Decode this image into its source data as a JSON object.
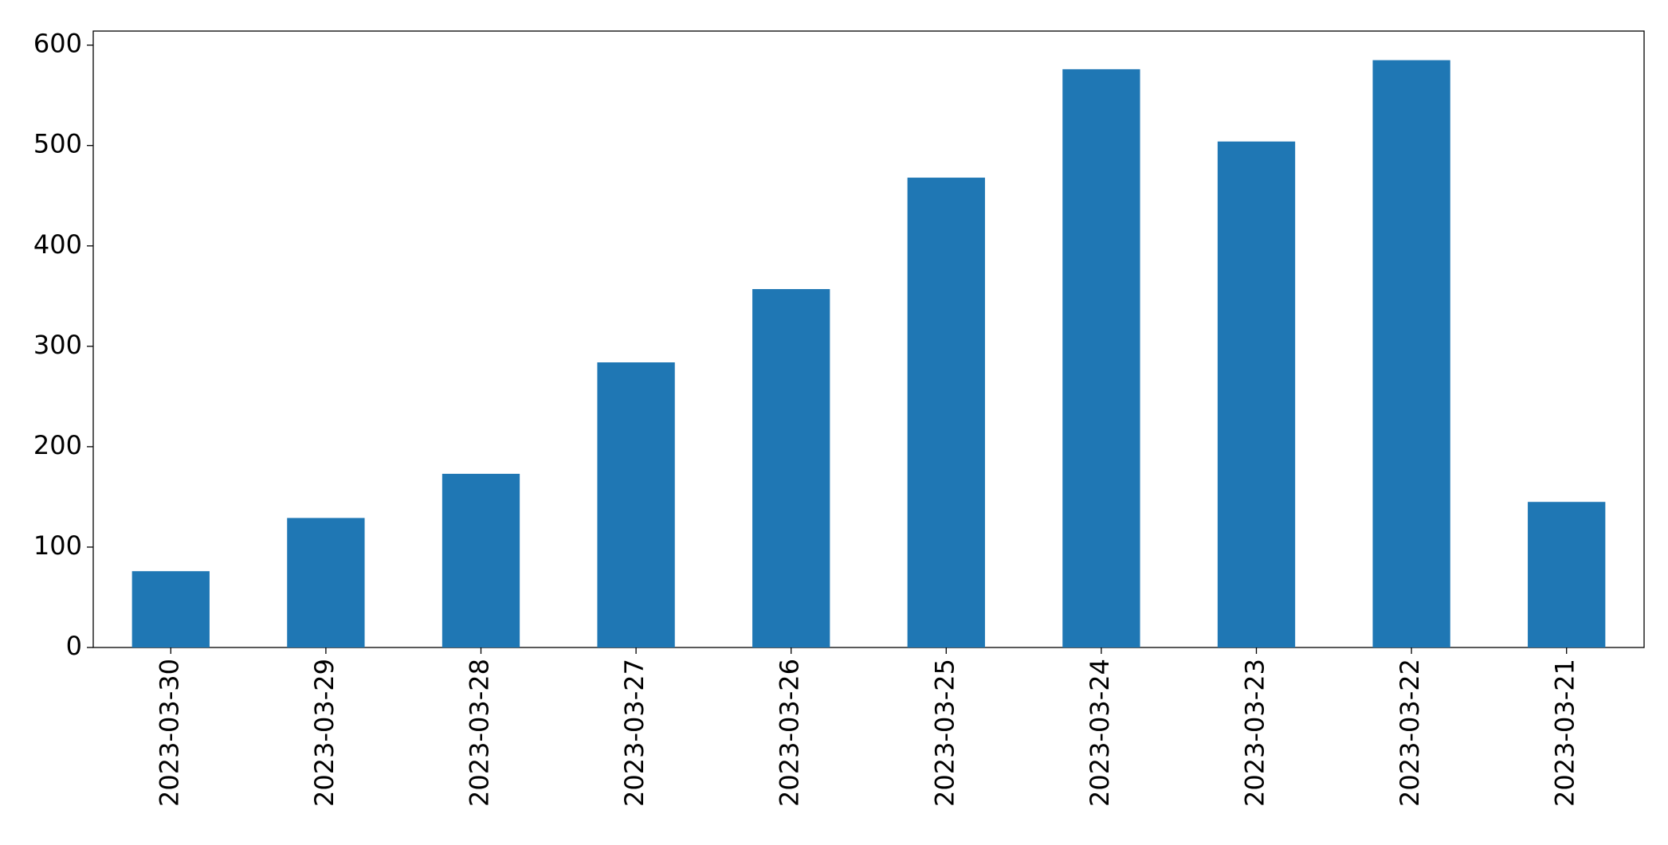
{
  "chart_data": {
    "type": "bar",
    "categories": [
      "2023-03-30",
      "2023-03-29",
      "2023-03-28",
      "2023-03-27",
      "2023-03-26",
      "2023-03-25",
      "2023-03-24",
      "2023-03-23",
      "2023-03-22",
      "2023-03-21"
    ],
    "values": [
      76,
      129,
      173,
      284,
      357,
      468,
      576,
      504,
      585,
      145
    ],
    "color": "#1f77b4",
    "ylim": [
      0,
      614
    ],
    "yticks": [
      0,
      100,
      200,
      300,
      400,
      500,
      600
    ],
    "grid": false
  }
}
